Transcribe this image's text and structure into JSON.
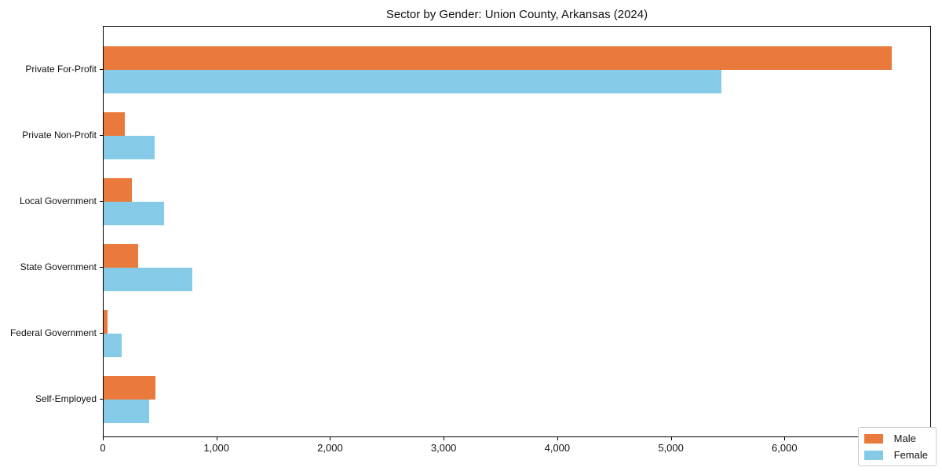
{
  "chart_data": {
    "type": "bar",
    "orientation": "horizontal",
    "title": "Sector by Gender: Union County, Arkansas (2024)",
    "categories": [
      "Private For-Profit",
      "Private Non-Profit",
      "Local Government",
      "State Government",
      "Federal Government",
      "Self-Employed"
    ],
    "series": [
      {
        "name": "Male",
        "color": "#e97a3c",
        "values": [
          6950,
          190,
          250,
          305,
          35,
          460
        ]
      },
      {
        "name": "Female",
        "color": "#85cbe8",
        "values": [
          5450,
          450,
          535,
          780,
          160,
          400
        ]
      }
    ],
    "xlabel": "",
    "ylabel": "",
    "xlim": [
      0,
      7290
    ],
    "x_ticks": [
      {
        "value": 0,
        "label": "0"
      },
      {
        "value": 1000,
        "label": "1,000"
      },
      {
        "value": 2000,
        "label": "2,000"
      },
      {
        "value": 3000,
        "label": "3,000"
      },
      {
        "value": 4000,
        "label": "4,000"
      },
      {
        "value": 5000,
        "label": "5,000"
      },
      {
        "value": 6000,
        "label": "6,000"
      },
      {
        "value": 7000,
        "label": "7,000"
      }
    ],
    "grid": false,
    "legend_position": "lower right"
  }
}
